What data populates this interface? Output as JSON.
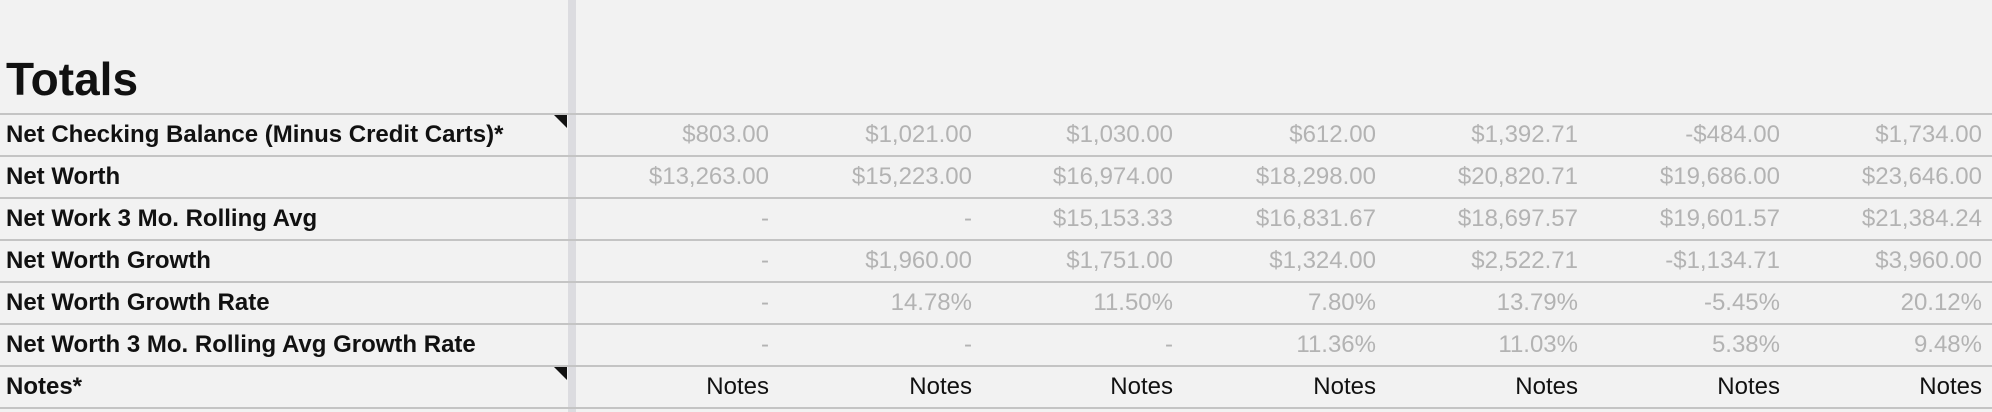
{
  "title": "Totals",
  "rows": [
    {
      "label": "Net Checking Balance (Minus Credit Carts)*",
      "has_note": true,
      "values": [
        "$803.00",
        "$1,021.00",
        "$1,030.00",
        "$612.00",
        "$1,392.71",
        "-$484.00",
        "$1,734.00"
      ]
    },
    {
      "label": "Net Worth",
      "has_note": false,
      "values": [
        "$13,263.00",
        "$15,223.00",
        "$16,974.00",
        "$18,298.00",
        "$20,820.71",
        "$19,686.00",
        "$23,646.00"
      ]
    },
    {
      "label": "Net Work 3 Mo. Rolling Avg",
      "has_note": false,
      "values": [
        "-",
        "-",
        "$15,153.33",
        "$16,831.67",
        "$18,697.57",
        "$19,601.57",
        "$21,384.24"
      ]
    },
    {
      "label": "Net Worth Growth",
      "has_note": false,
      "values": [
        "-",
        "$1,960.00",
        "$1,751.00",
        "$1,324.00",
        "$2,522.71",
        "-$1,134.71",
        "$3,960.00"
      ]
    },
    {
      "label": "Net Worth Growth Rate",
      "has_note": false,
      "values": [
        "-",
        "14.78%",
        "11.50%",
        "7.80%",
        "13.79%",
        "-5.45%",
        "20.12%"
      ]
    },
    {
      "label": "Net Worth 3 Mo. Rolling Avg Growth Rate",
      "has_note": false,
      "values": [
        "-",
        "-",
        "-",
        "11.36%",
        "11.03%",
        "5.38%",
        "9.48%"
      ]
    },
    {
      "label": "Notes*",
      "has_note": true,
      "notes": true,
      "values": [
        "Notes",
        "Notes",
        "Notes",
        "Notes",
        "Notes",
        "Notes",
        "Notes"
      ]
    }
  ],
  "colors": {
    "background": "#f2f2f2",
    "value_text": "#b3b3b3",
    "label_text": "#111111",
    "grid": "#c4c4c4"
  }
}
